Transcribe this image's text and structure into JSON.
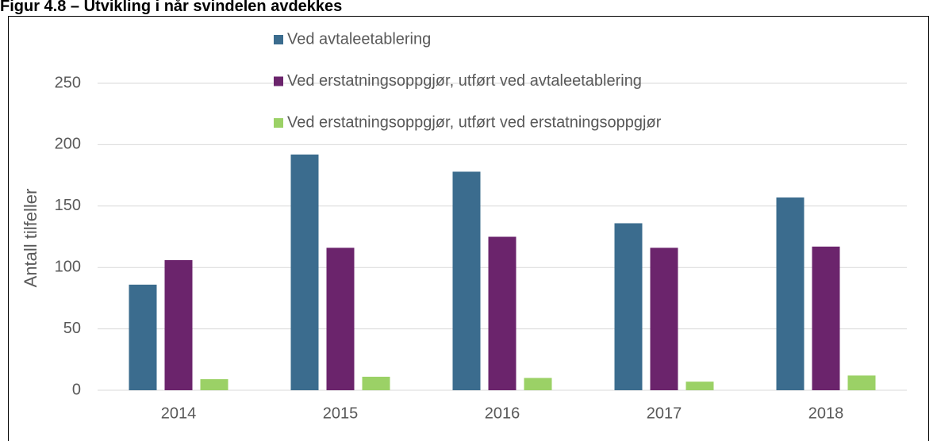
{
  "chart_data": {
    "type": "bar",
    "title": "Figur 4.8 – Utvikling i når svindelen avdekkes",
    "y_label": "Antall tilfeller",
    "categories": [
      "2014",
      "2015",
      "2016",
      "2017",
      "2018"
    ],
    "series": [
      {
        "name": "Ved avtaleetablering",
        "color": "#3b6c8e",
        "values": [
          86,
          192,
          178,
          136,
          157
        ]
      },
      {
        "name": "Ved erstatningsoppgjør, utført ved avtaleetablering",
        "color": "#6b246c",
        "values": [
          106,
          116,
          125,
          116,
          117
        ]
      },
      {
        "name": "Ved erstatningsoppgjør, utført ved erstatningsoppgjør",
        "color": "#9bd166",
        "values": [
          9,
          11,
          10,
          7,
          12
        ]
      }
    ],
    "ylim": [
      0,
      250
    ],
    "yticks": [
      0,
      50,
      100,
      150,
      200,
      250
    ],
    "grid": true,
    "legend": "top"
  }
}
